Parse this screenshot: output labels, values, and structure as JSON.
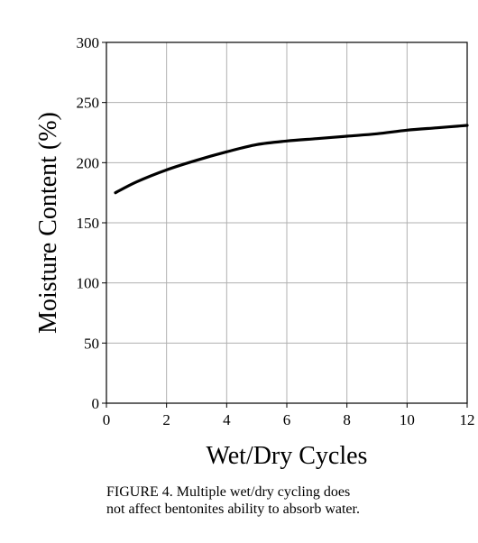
{
  "chart_data": {
    "type": "line",
    "title": "",
    "xlabel": "Wet/Dry Cycles",
    "ylabel": "Moisture Content (%)",
    "xlim": [
      0,
      12
    ],
    "ylim": [
      0,
      300
    ],
    "xticks": [
      0,
      2,
      4,
      6,
      8,
      10,
      12
    ],
    "yticks": [
      0,
      50,
      100,
      150,
      200,
      250,
      300
    ],
    "grid": true,
    "series": [
      {
        "x": [
          0.3,
          1,
          2,
          3,
          4,
          5,
          6,
          7,
          8,
          9,
          10,
          11,
          12
        ],
        "y": [
          175,
          184,
          194,
          202,
          209,
          215,
          218,
          220,
          222,
          224,
          227,
          229,
          231
        ]
      }
    ],
    "colors": {
      "line": "#000000",
      "grid": "#b0b0b0",
      "axis": "#000000"
    }
  },
  "caption": {
    "text": "FIGURE 4.   Multiple wet/dry cycling does\nnot affect bentonites ability to absorb water."
  }
}
